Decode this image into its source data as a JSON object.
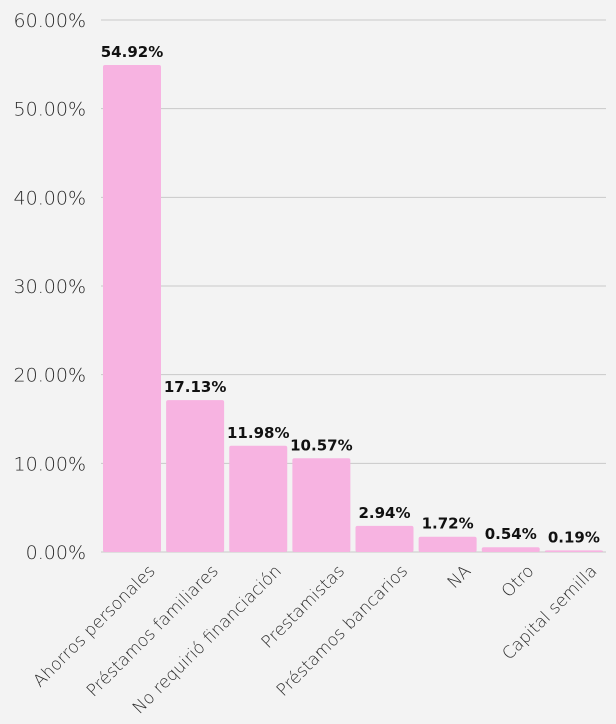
{
  "chart_data": {
    "type": "bar",
    "title": "",
    "xlabel": "",
    "ylabel": "",
    "categories": [
      "Ahorros personales",
      "Préstamos familiares",
      "No requirió financiación",
      "Prestamistas",
      "Préstamos bancarios",
      "NA",
      "Otro",
      "Capital semilla"
    ],
    "values": [
      54.92,
      17.13,
      11.98,
      10.57,
      2.94,
      1.72,
      0.54,
      0.19
    ],
    "value_labels": [
      "54.92%",
      "17.13%",
      "11.98%",
      "10.57%",
      "2.94%",
      "1.72%",
      "0.54%",
      "0.19%"
    ],
    "ylim": [
      0,
      60
    ],
    "yticks": [
      0,
      10,
      20,
      30,
      40,
      50,
      60
    ],
    "ytick_labels": [
      "0.00%",
      "10.00%",
      "20.00%",
      "30.00%",
      "40.00%",
      "50.00%",
      "60.00%"
    ],
    "grid": true,
    "legend": "none",
    "bar_color": "#f7b3e1"
  }
}
